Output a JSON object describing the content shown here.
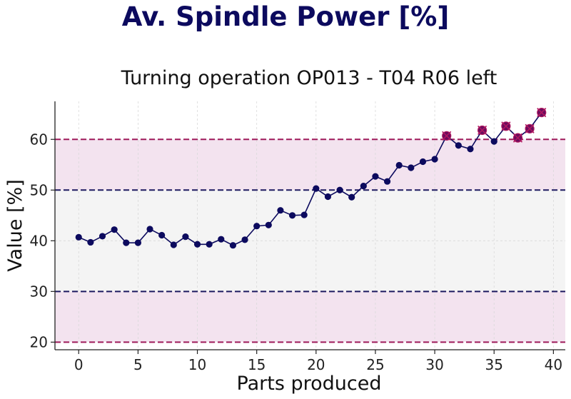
{
  "page_title": "Av. Spindle Power [%]",
  "chart_data": {
    "type": "line",
    "title": "Turning operation OP013 - T04 R06 left",
    "xlabel": "Parts produced",
    "ylabel": "Value [%]",
    "xlim": [
      -2,
      41
    ],
    "ylim": [
      18.5,
      67.5
    ],
    "xticks": [
      0,
      5,
      10,
      15,
      20,
      25,
      30,
      35,
      40
    ],
    "yticks": [
      20,
      30,
      40,
      50,
      60
    ],
    "grid": true,
    "limits": {
      "lower_warning": 30,
      "upper_warning": 50,
      "lower_control": 20,
      "upper_control": 60
    },
    "bands": [
      {
        "from": 20,
        "to": 30,
        "color": "#f3e3ef"
      },
      {
        "from": 30,
        "to": 50,
        "color": "#f4f4f4"
      },
      {
        "from": 50,
        "to": 60,
        "color": "#f3e3ef"
      }
    ],
    "series": [
      {
        "x": [
          0,
          1,
          2,
          3,
          4,
          5,
          6,
          7,
          8,
          9,
          10,
          11,
          12,
          13,
          14,
          15,
          16,
          17,
          18,
          19,
          20,
          21,
          22,
          23,
          24,
          25,
          26,
          27,
          28,
          29,
          30,
          31,
          32,
          33,
          34,
          35,
          36,
          37,
          38,
          39
        ],
        "values": [
          40.7,
          39.7,
          40.9,
          42.2,
          39.6,
          39.6,
          42.3,
          41.1,
          39.2,
          40.8,
          39.3,
          39.3,
          40.3,
          39.1,
          40.2,
          42.9,
          43.1,
          46.0,
          45.0,
          45.1,
          50.3,
          48.7,
          50.0,
          48.6,
          50.8,
          52.7,
          51.7,
          54.9,
          54.4,
          55.6,
          56.1,
          60.7,
          58.8,
          58.1,
          61.8,
          59.6,
          62.6,
          60.3,
          62.1,
          65.3
        ],
        "flagged_x": [
          31,
          34,
          36,
          37,
          38,
          39
        ]
      }
    ],
    "colors": {
      "line": "#0c0a5e",
      "marker": "#0c0a5e",
      "flag_marker": "#6b0b5e",
      "flag_cross": "#b0175f",
      "control_limit": "#9e1a5a",
      "warning_limit": "#1e1a60",
      "title": "#0c0a5e"
    }
  }
}
